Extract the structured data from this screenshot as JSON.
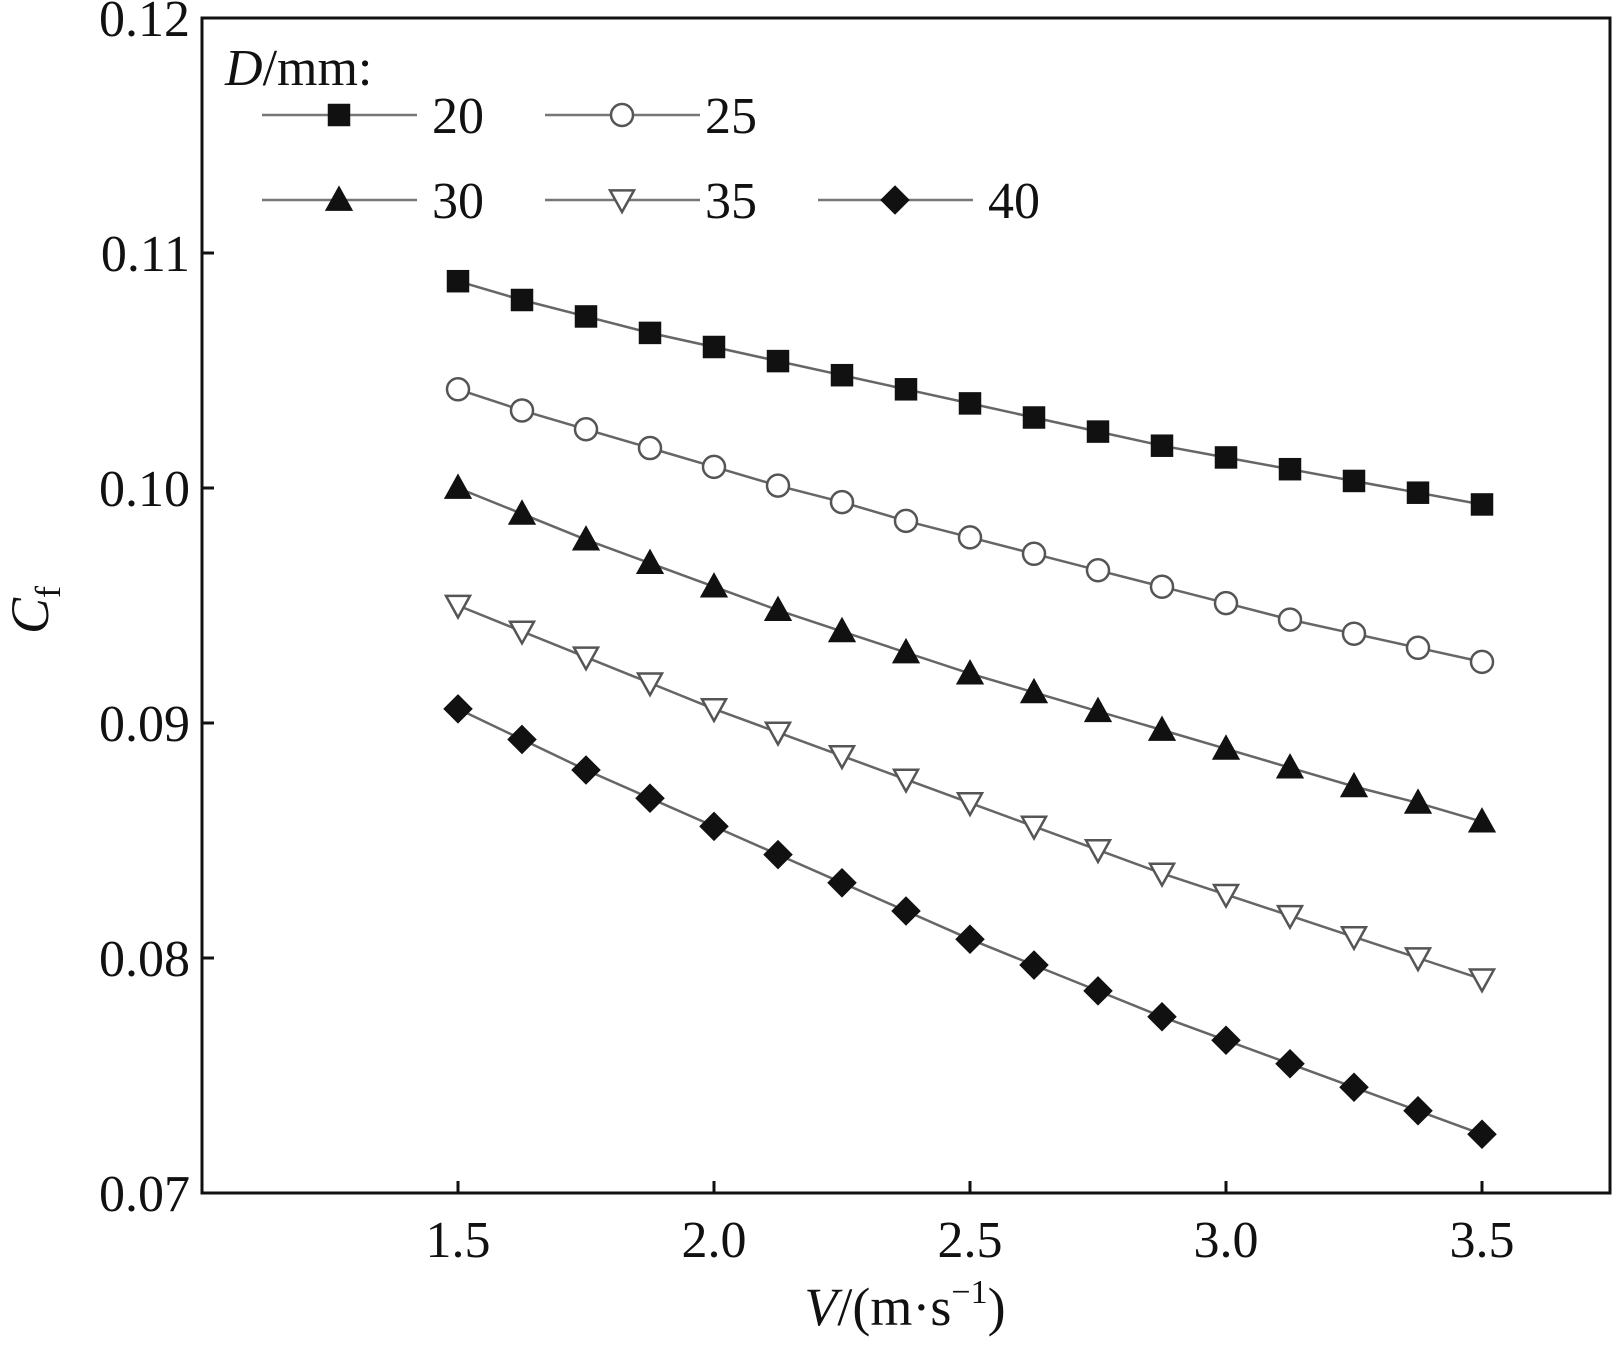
{
  "chart_data": {
    "type": "line",
    "title": "",
    "xlabel": {
      "var": "V",
      "unit": "/(m·s",
      "exp": "−1",
      "close": ")"
    },
    "ylabel": {
      "var": "C",
      "sub": "f"
    },
    "xlim": [
      1.0,
      3.75
    ],
    "ylim": [
      0.07,
      0.12
    ],
    "xticks": [
      1.5,
      2.0,
      2.5,
      3.0,
      3.5
    ],
    "xtick_labels": [
      "1.5",
      "2.0",
      "2.5",
      "3.0",
      "3.5"
    ],
    "yticks": [
      0.07,
      0.08,
      0.09,
      0.1,
      0.11,
      0.12
    ],
    "ytick_labels": [
      "0.07",
      "0.08",
      "0.09",
      "0.10",
      "0.11",
      "0.12"
    ],
    "grid": false,
    "legend": {
      "title_var": "D",
      "title_unit": "/mm:",
      "placement": "top-left"
    },
    "x": [
      1.5,
      1.625,
      1.75,
      1.875,
      2.0,
      2.125,
      2.25,
      2.375,
      2.5,
      2.625,
      2.75,
      2.875,
      3.0,
      3.125,
      3.25,
      3.375,
      3.5
    ],
    "series": [
      {
        "name": "20",
        "marker": "square-filled",
        "values": [
          0.1088,
          0.108,
          0.1073,
          0.1066,
          0.106,
          0.1054,
          0.1048,
          0.1042,
          0.1036,
          0.103,
          0.1024,
          0.1018,
          0.1013,
          0.1008,
          0.1003,
          0.0998,
          0.0993
        ]
      },
      {
        "name": "25",
        "marker": "circle-open",
        "values": [
          0.1042,
          0.1033,
          0.1025,
          0.1017,
          0.1009,
          0.1001,
          0.0994,
          0.0986,
          0.0979,
          0.0972,
          0.0965,
          0.0958,
          0.0951,
          0.0944,
          0.0938,
          0.0932,
          0.0926
        ]
      },
      {
        "name": "30",
        "marker": "triangle-up-filled",
        "values": [
          0.1,
          0.0989,
          0.0978,
          0.0968,
          0.0958,
          0.0948,
          0.0939,
          0.093,
          0.0921,
          0.0913,
          0.0905,
          0.0897,
          0.0889,
          0.0881,
          0.0873,
          0.0866,
          0.0858
        ]
      },
      {
        "name": "35",
        "marker": "triangle-down-open",
        "values": [
          0.095,
          0.0939,
          0.0928,
          0.0917,
          0.0906,
          0.0896,
          0.0886,
          0.0876,
          0.0866,
          0.0856,
          0.0846,
          0.0836,
          0.0827,
          0.0818,
          0.0809,
          0.08,
          0.0791
        ]
      },
      {
        "name": "40",
        "marker": "diamond-filled",
        "values": [
          0.0906,
          0.0893,
          0.088,
          0.0868,
          0.0856,
          0.0844,
          0.0832,
          0.082,
          0.0808,
          0.0797,
          0.0786,
          0.0775,
          0.0765,
          0.0755,
          0.0745,
          0.0735,
          0.0725
        ]
      }
    ]
  }
}
